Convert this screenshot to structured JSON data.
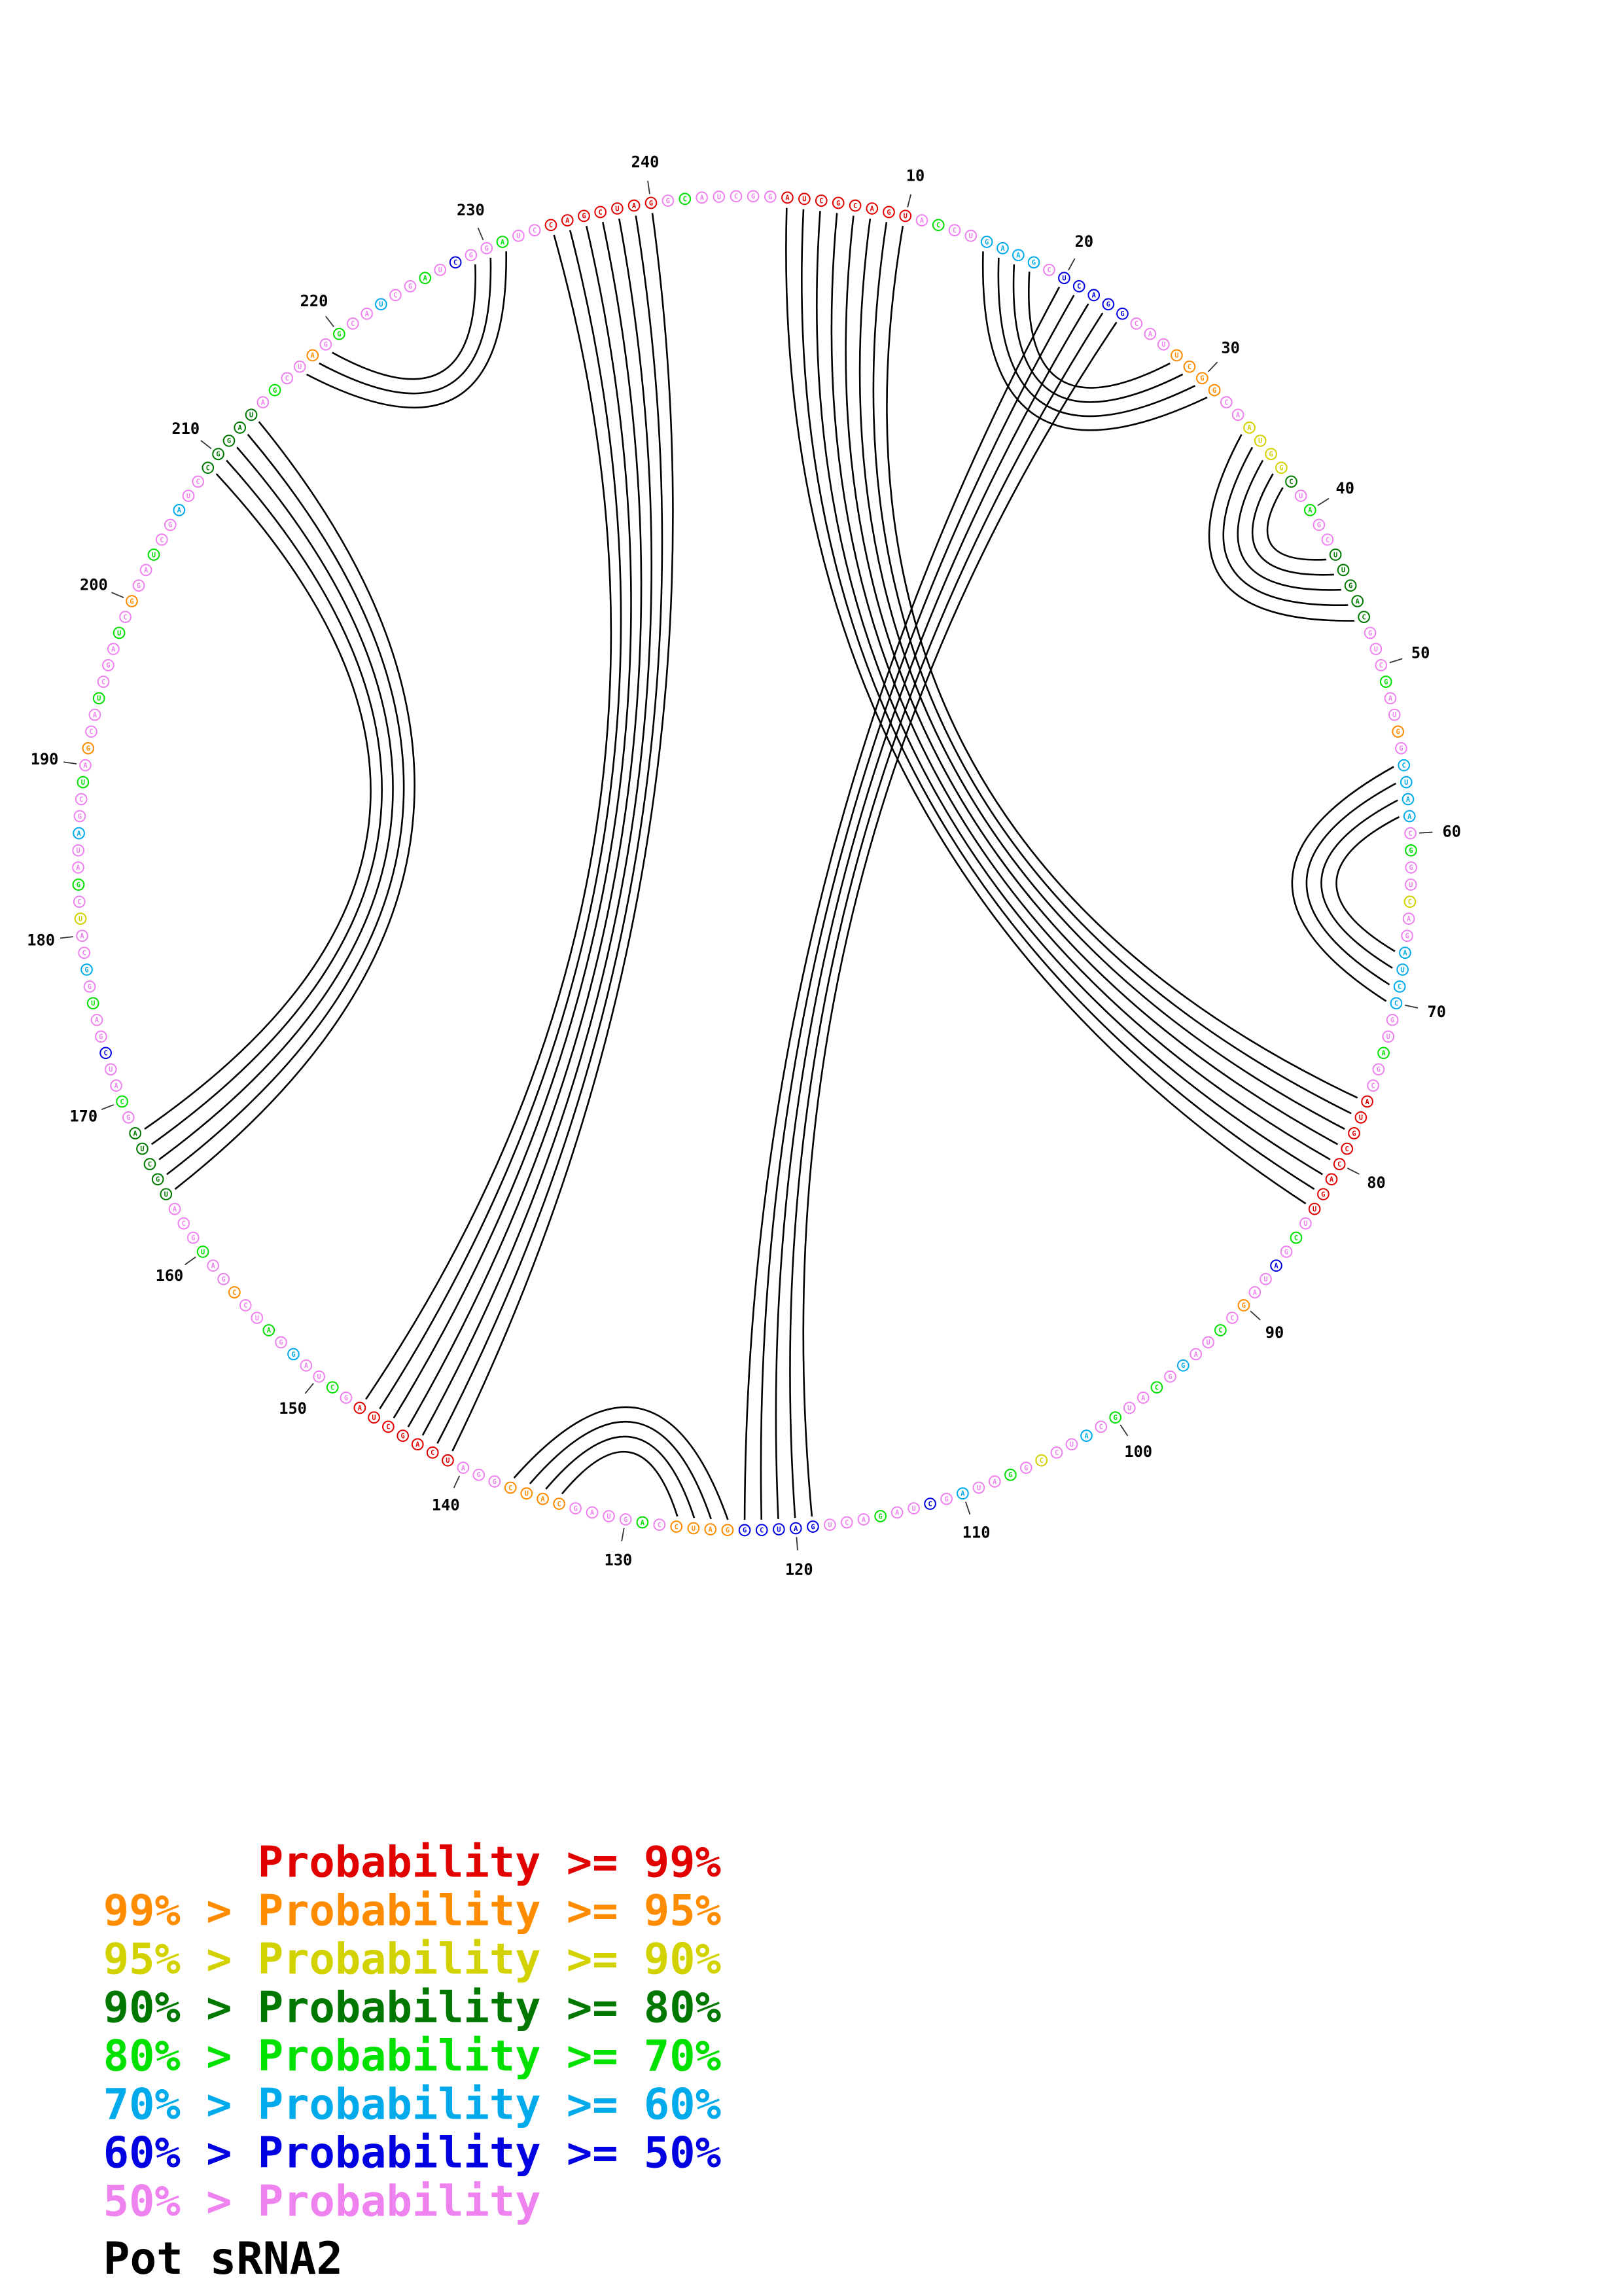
{
  "title": "Pot sRNA2",
  "plot": {
    "sequence": "GGAUCGCAGUACCUGAAGCUCAGGCAUUCGGCAAUGGCUAGCUUGACGUCGAUGGCUAACGGUCAGAUCCGUAGCAUGCCAGUUCGAUAGCCUAGGCAUGCAUCCGGAUAGCUAGACUGAUCGGAUCCAGUAGCAUCGGAUCAGCUAGCUAGGAUCCGAUGCAUGCUAGCAUCGAUGGCAUCGAUAGCUAGCAUCGAUCGGAUCGAUCCGGAUAGCUAGGCAUCGAUCGGAUCCAGCUAGGCAUC",
    "colors": "mmrrrrrrrrmgmmccccmbbbbbmmmoooommyyyydmgmmdddddmmmgmmomccccmgmmymmccccmmgmmrrrrrrrrmgmbmmomgmmcmgmmgmcmmymgmmcmbmmgmmmbbbbboooomgmmmmoooommmrrrrrrrmgmmcmgmmommgmmmdddddmgmmbmmgmcmmymgmmcmmgmommgmmmgmommgmmcmmdddddmgmmomgmmcmmgmbmmgmmrrrrrrrmgmmm",
    "color_map": {
      "r": "#e00000",
      "o": "#ff8c00",
      "y": "#d2d200",
      "d": "#007800",
      "g": "#00e100",
      "c": "#00aaeb",
      "b": "#0000e1",
      "m": "#ee82ee"
    },
    "arc_color": "#000000",
    "ticks": [
      10,
      20,
      30,
      40,
      50,
      60,
      70,
      80,
      90,
      100,
      110,
      120,
      130,
      140,
      150,
      160,
      170,
      180,
      190,
      200,
      210,
      220,
      230,
      240
    ],
    "pairs": [
      [
        3,
        83
      ],
      [
        4,
        82
      ],
      [
        5,
        81
      ],
      [
        6,
        80
      ],
      [
        7,
        79
      ],
      [
        8,
        78
      ],
      [
        9,
        77
      ],
      [
        10,
        76
      ],
      [
        15,
        31
      ],
      [
        16,
        30
      ],
      [
        17,
        29
      ],
      [
        18,
        28
      ],
      [
        20,
        123
      ],
      [
        21,
        122
      ],
      [
        22,
        121
      ],
      [
        23,
        120
      ],
      [
        24,
        119
      ],
      [
        34,
        47
      ],
      [
        35,
        46
      ],
      [
        36,
        45
      ],
      [
        37,
        44
      ],
      [
        38,
        43
      ],
      [
        56,
        70
      ],
      [
        57,
        69
      ],
      [
        58,
        68
      ],
      [
        59,
        67
      ],
      [
        124,
        137
      ],
      [
        125,
        136
      ],
      [
        126,
        135
      ],
      [
        127,
        134
      ],
      [
        164,
        213
      ],
      [
        165,
        212
      ],
      [
        166,
        211
      ],
      [
        167,
        210
      ],
      [
        168,
        209
      ],
      [
        217,
        231
      ],
      [
        218,
        230
      ],
      [
        219,
        229
      ],
      [
        234,
        147
      ],
      [
        235,
        146
      ],
      [
        236,
        145
      ],
      [
        237,
        144
      ],
      [
        238,
        143
      ],
      [
        239,
        142
      ],
      [
        240,
        141
      ]
    ]
  },
  "legend": {
    "items": [
      {
        "text": "Probability >= 99%",
        "color": "#e00000",
        "indent_spaces": 6
      },
      {
        "text": "99% > Probability >= 95%",
        "color": "#ff8c00",
        "indent_spaces": 0
      },
      {
        "text": "95% > Probability >= 90%",
        "color": "#d2d200",
        "indent_spaces": 0
      },
      {
        "text": "90% > Probability >= 80%",
        "color": "#007800",
        "indent_spaces": 0
      },
      {
        "text": "80% > Probability >= 70%",
        "color": "#00e100",
        "indent_spaces": 0
      },
      {
        "text": "70% > Probability >= 60%",
        "color": "#00aaeb",
        "indent_spaces": 0
      },
      {
        "text": "60% > Probability >= 50%",
        "color": "#0000e1",
        "indent_spaces": 0
      },
      {
        "text": "50% > Probability",
        "color": "#ee82ee",
        "indent_spaces": 0
      }
    ]
  }
}
